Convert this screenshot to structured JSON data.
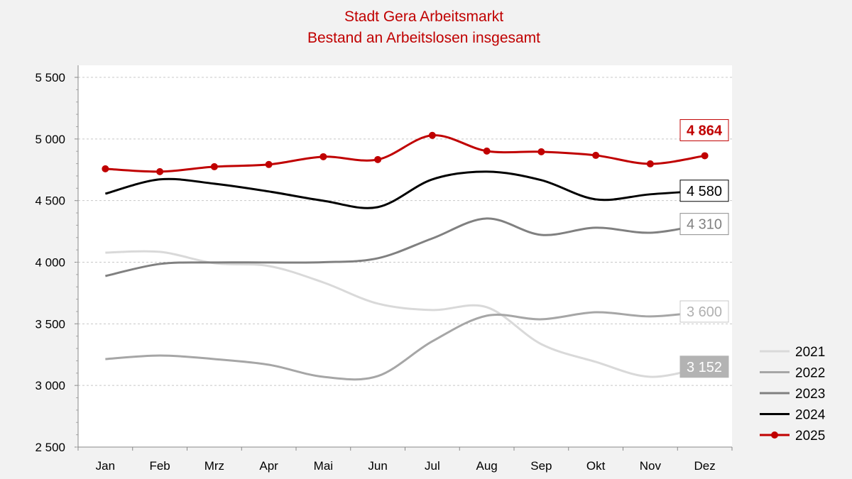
{
  "chart_data": {
    "type": "line",
    "title": [
      "Stadt Gera Arbeitsmarkt",
      "Bestand an Arbeitslosen insgesamt"
    ],
    "xlabel": "",
    "ylabel": "",
    "categories": [
      "Jan",
      "Feb",
      "Mrz",
      "Apr",
      "Mai",
      "Jun",
      "Jul",
      "Aug",
      "Sep",
      "Okt",
      "Nov",
      "Dez"
    ],
    "ylim": [
      2500,
      5500
    ],
    "yticks": [
      2500,
      3000,
      3500,
      4000,
      4500,
      5000,
      5500
    ],
    "ytick_labels": [
      "2 500",
      "3 000",
      "3 500",
      "4 000",
      "4 500",
      "5 000",
      "5 500"
    ],
    "grid": "horizontal dashed",
    "legend_position": "right-bottom",
    "series": [
      {
        "name": "2021",
        "color": "#d9d9d9",
        "end_label": "3 152",
        "markers": false,
        "values": [
          4078,
          4084,
          3992,
          3969,
          3836,
          3664,
          3612,
          3635,
          3335,
          3191,
          3070,
          3152
        ]
      },
      {
        "name": "2022",
        "color": "#a6a6a6",
        "end_label": "3 600",
        "markers": false,
        "values": [
          3214,
          3243,
          3214,
          3168,
          3070,
          3076,
          3358,
          3566,
          3537,
          3594,
          3560,
          3600
        ]
      },
      {
        "name": "2023",
        "color": "#808080",
        "end_label": "4 310",
        "markers": false,
        "values": [
          3888,
          3986,
          3998,
          3998,
          4000,
          4032,
          4193,
          4355,
          4222,
          4280,
          4239,
          4310
        ]
      },
      {
        "name": "2024",
        "color": "#000000",
        "end_label": "4 580",
        "markers": false,
        "values": [
          4556,
          4672,
          4637,
          4574,
          4499,
          4447,
          4672,
          4735,
          4666,
          4510,
          4551,
          4580
        ]
      },
      {
        "name": "2025",
        "color": "#c00000",
        "end_label": "4 864",
        "markers": true,
        "values": [
          4758,
          4735,
          4775,
          4793,
          4856,
          4833,
          5029,
          4902,
          4896,
          4867,
          4798,
          4864
        ]
      }
    ]
  }
}
